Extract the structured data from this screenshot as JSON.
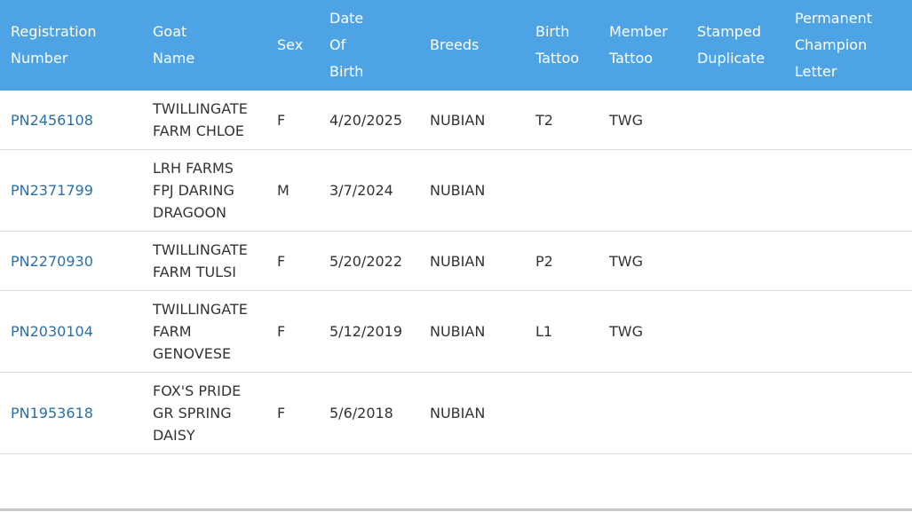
{
  "table": {
    "headers": [
      [
        "Registration",
        "Number"
      ],
      [
        "Goat",
        "Name"
      ],
      [
        "Sex"
      ],
      [
        "Date",
        "Of",
        "Birth"
      ],
      [
        "Breeds"
      ],
      [
        "Birth",
        "Tattoo"
      ],
      [
        "Member",
        "Tattoo"
      ],
      [
        "Stamped",
        "Duplicate"
      ],
      [
        "Permanent",
        "Champion",
        "Letter"
      ]
    ],
    "rows": [
      {
        "registration_number": "PN2456108",
        "goat_name": [
          "TWILLINGATE",
          "FARM CHLOE"
        ],
        "sex": "F",
        "date_of_birth": "4/20/2025",
        "breeds": "NUBIAN",
        "birth_tattoo": "T2",
        "member_tattoo": "TWG",
        "stamped_duplicate": "",
        "permanent_champion_letter": ""
      },
      {
        "registration_number": "PN2371799",
        "goat_name": [
          "LRH FARMS",
          "FPJ DARING",
          "DRAGOON"
        ],
        "sex": "M",
        "date_of_birth": "3/7/2024",
        "breeds": "NUBIAN",
        "birth_tattoo": "",
        "member_tattoo": "",
        "stamped_duplicate": "",
        "permanent_champion_letter": ""
      },
      {
        "registration_number": "PN2270930",
        "goat_name": [
          "TWILLINGATE",
          "FARM TULSI"
        ],
        "sex": "F",
        "date_of_birth": "5/20/2022",
        "breeds": "NUBIAN",
        "birth_tattoo": "P2",
        "member_tattoo": "TWG",
        "stamped_duplicate": "",
        "permanent_champion_letter": ""
      },
      {
        "registration_number": "PN2030104",
        "goat_name": [
          "TWILLINGATE",
          "FARM",
          "GENOVESE"
        ],
        "sex": "F",
        "date_of_birth": "5/12/2019",
        "breeds": "NUBIAN",
        "birth_tattoo": "L1",
        "member_tattoo": "TWG",
        "stamped_duplicate": "",
        "permanent_champion_letter": ""
      },
      {
        "registration_number": "PN1953618",
        "goat_name": [
          "FOX'S PRIDE",
          "GR SPRING",
          "DAISY"
        ],
        "sex": "F",
        "date_of_birth": "5/6/2018",
        "breeds": "NUBIAN",
        "birth_tattoo": "",
        "member_tattoo": "",
        "stamped_duplicate": "",
        "permanent_champion_letter": ""
      }
    ]
  },
  "colors": {
    "header_background": "#4da3e4",
    "header_text": "#ffffff",
    "link": "#2a6faa",
    "cell_text": "#333333",
    "row_border": "#dddddd"
  }
}
